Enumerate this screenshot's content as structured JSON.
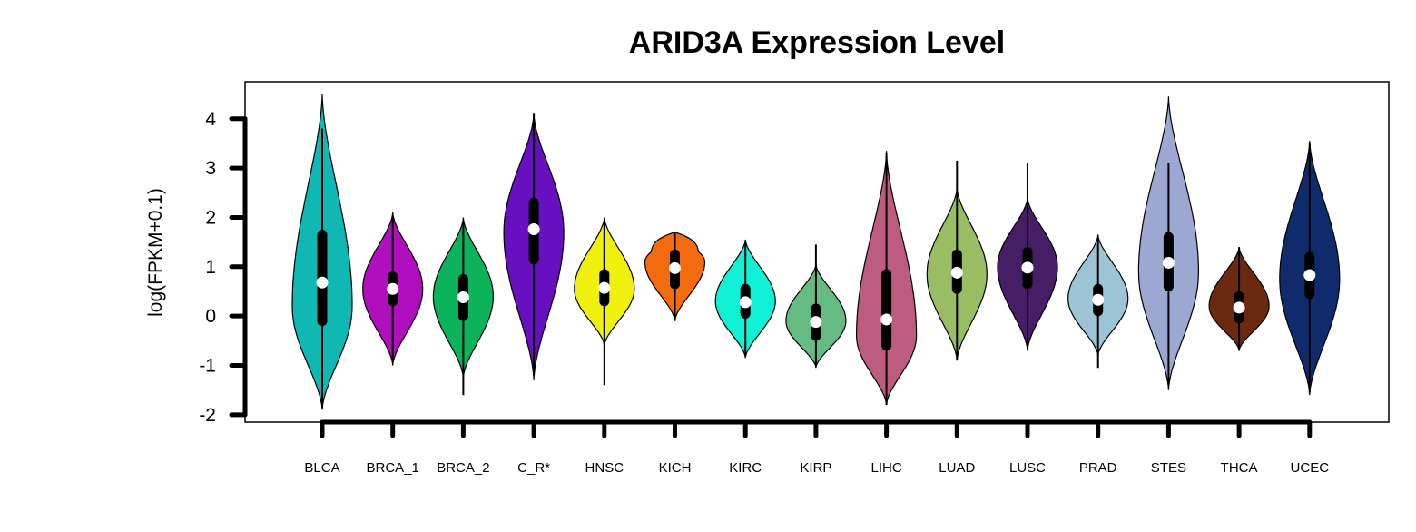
{
  "chart_data": {
    "type": "violin",
    "title": "ARID3A Expression Level",
    "xlabel": "",
    "ylabel": "log(FPKM+0.1)",
    "ylim": [
      -2.15,
      4.75
    ],
    "yticks": [
      "-2",
      "-1",
      "0",
      "1",
      "2",
      "3",
      "4"
    ],
    "grid": false,
    "legend": "none",
    "categories": [
      "BLCA",
      "BRCA_1",
      "BRCA_2",
      "C_R*",
      "HNSC",
      "KICH",
      "KIRC",
      "KIRP",
      "LIHC",
      "LUAD",
      "LUSC",
      "PRAD",
      "STES",
      "THCA",
      "UCEC"
    ],
    "series": [
      {
        "category": "BLCA",
        "color": "#0fb8b3",
        "min": -1.9,
        "max": 4.5,
        "q1": -0.1,
        "median": 0.68,
        "q3": 1.65,
        "whisker_low": -1.85,
        "whisker_high": 3.8,
        "mode": 0.2
      },
      {
        "category": "BRCA_1",
        "color": "#b00fbe",
        "min": -1.0,
        "max": 2.1,
        "q1": 0.3,
        "median": 0.55,
        "q3": 0.8,
        "whisker_low": -0.9,
        "whisker_high": 2.0,
        "mode": 0.55
      },
      {
        "category": "BRCA_2",
        "color": "#0db35b",
        "min": -1.25,
        "max": 2.0,
        "q1": 0.0,
        "median": 0.38,
        "q3": 0.75,
        "whisker_low": -1.6,
        "whisker_high": 1.9,
        "mode": 0.4
      },
      {
        "category": "C_R*",
        "color": "#6610bf",
        "min": -1.3,
        "max": 4.1,
        "q1": 1.15,
        "median": 1.76,
        "q3": 2.3,
        "whisker_low": -1.2,
        "whisker_high": 4.1,
        "mode": 1.7
      },
      {
        "category": "HNSC",
        "color": "#f0f00f",
        "min": -0.6,
        "max": 2.0,
        "q1": 0.3,
        "median": 0.57,
        "q3": 0.85,
        "whisker_low": -1.4,
        "whisker_high": 1.9,
        "mode": 0.55
      },
      {
        "category": "KICH",
        "color": "#f26b0f",
        "min": -0.1,
        "max": 1.7,
        "q1": 0.65,
        "median": 0.97,
        "q3": 1.25,
        "whisker_low": -0.1,
        "whisker_high": 1.7,
        "mode": 1.1
      },
      {
        "category": "KIRC",
        "color": "#10f0d4",
        "min": -0.85,
        "max": 1.55,
        "q1": 0.05,
        "median": 0.28,
        "q3": 0.55,
        "whisker_low": -0.8,
        "whisker_high": 1.5,
        "mode": 0.3
      },
      {
        "category": "KIRP",
        "color": "#66bb83",
        "min": -1.05,
        "max": 1.05,
        "q1": -0.4,
        "median": -0.12,
        "q3": 0.15,
        "whisker_low": -1.0,
        "whisker_high": 1.45,
        "mode": -0.1
      },
      {
        "category": "LIHC",
        "color": "#bd5c80",
        "min": -1.8,
        "max": 3.35,
        "q1": -0.6,
        "median": -0.07,
        "q3": 0.85,
        "whisker_low": -1.8,
        "whisker_high": 3.3,
        "mode": -0.4
      },
      {
        "category": "LUAD",
        "color": "#99bd63",
        "min": -0.9,
        "max": 2.6,
        "q1": 0.55,
        "median": 0.88,
        "q3": 1.25,
        "whisker_low": -0.9,
        "whisker_high": 3.15,
        "mode": 0.85
      },
      {
        "category": "LUSC",
        "color": "#461e66",
        "min": -0.7,
        "max": 2.4,
        "q1": 0.65,
        "median": 0.98,
        "q3": 1.3,
        "whisker_low": -0.7,
        "whisker_high": 3.1,
        "mode": 1.0
      },
      {
        "category": "PRAD",
        "color": "#9dc4d4",
        "min": -0.8,
        "max": 1.65,
        "q1": 0.1,
        "median": 0.33,
        "q3": 0.55,
        "whisker_low": -1.05,
        "whisker_high": 1.6,
        "mode": 0.35
      },
      {
        "category": "STES",
        "color": "#9ba8d1",
        "min": -1.5,
        "max": 4.45,
        "q1": 0.6,
        "median": 1.08,
        "q3": 1.6,
        "whisker_low": -1.4,
        "whisker_high": 3.1,
        "mode": 0.9
      },
      {
        "category": "THCA",
        "color": "#6b2a10",
        "min": -0.7,
        "max": 1.4,
        "q1": -0.05,
        "median": 0.17,
        "q3": 0.4,
        "whisker_low": -0.7,
        "whisker_high": 1.4,
        "mode": 0.2
      },
      {
        "category": "UCEC",
        "color": "#0f2b6b",
        "min": -1.6,
        "max": 3.55,
        "q1": 0.45,
        "median": 0.83,
        "q3": 1.2,
        "whisker_low": -1.55,
        "whisker_high": 3.5,
        "mode": 0.75
      }
    ]
  }
}
